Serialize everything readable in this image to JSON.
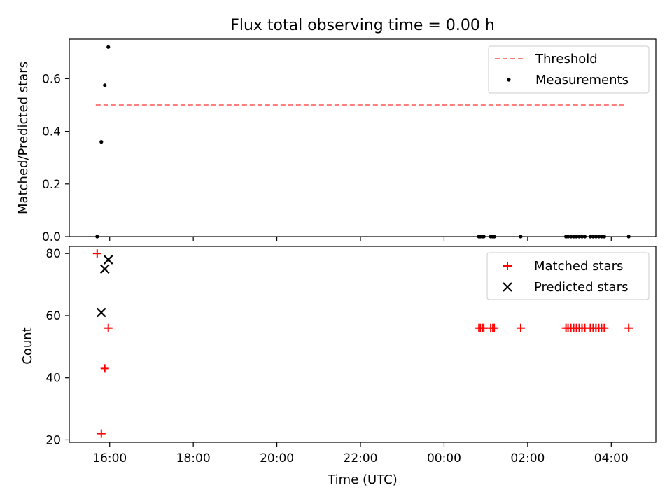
{
  "figure": {
    "title": "Flux total observing time = 0.00 h"
  },
  "chart_data": [
    {
      "type": "scatter",
      "panel": "top",
      "title": "Flux total observing time = 0.00 h",
      "xlabel": "",
      "ylabel": "Matched/Predicted stars",
      "x_axis": "time",
      "x_ticks": [
        "16:00",
        "18:00",
        "20:00",
        "22:00",
        "00:00",
        "02:00",
        "04:00"
      ],
      "x_tick_labels_visible": false,
      "xlim": [
        "2024-01-01T15:02",
        "2024-01-02T05:04"
      ],
      "ylim": [
        0,
        0.75
      ],
      "y_ticks": [
        0.0,
        0.2,
        0.4,
        0.6
      ],
      "y_tick_labels": [
        "0.0",
        "0.2",
        "0.4",
        "0.6"
      ],
      "grid": false,
      "legend_position": "upper right",
      "series": [
        {
          "name": "Threshold",
          "kind": "dashed-line",
          "color": "#ff7f7f",
          "x": [
            "2024-01-01T15:40",
            "2024-01-02T04:22"
          ],
          "y": [
            0.5,
            0.5
          ]
        },
        {
          "name": "Measurements",
          "kind": "dot",
          "color": "#000000",
          "x": [
            "2024-01-01T15:42",
            "2024-01-01T15:48",
            "2024-01-01T15:53",
            "2024-01-01T15:58",
            "2024-01-02T00:50",
            "2024-01-02T00:52",
            "2024-01-02T00:55",
            "2024-01-02T00:57",
            "2024-01-02T01:07",
            "2024-01-02T01:10",
            "2024-01-02T01:12",
            "2024-01-02T01:50",
            "2024-01-02T02:55",
            "2024-01-02T02:58",
            "2024-01-02T03:02",
            "2024-01-02T03:06",
            "2024-01-02T03:10",
            "2024-01-02T03:14",
            "2024-01-02T03:18",
            "2024-01-02T03:22",
            "2024-01-02T03:30",
            "2024-01-02T03:34",
            "2024-01-02T03:38",
            "2024-01-02T03:42",
            "2024-01-02T03:46",
            "2024-01-02T03:50",
            "2024-01-02T04:25"
          ],
          "y": [
            0.0,
            0.36,
            0.575,
            0.72,
            0.0,
            0.0,
            0.0,
            0.0,
            0.0,
            0.0,
            0.0,
            0.0,
            0.0,
            0.0,
            0.0,
            0.0,
            0.0,
            0.0,
            0.0,
            0.0,
            0.0,
            0.0,
            0.0,
            0.0,
            0.0,
            0.0,
            0.0
          ]
        }
      ]
    },
    {
      "type": "scatter",
      "panel": "bottom",
      "xlabel": "Time (UTC)",
      "ylabel": "Count",
      "x_axis": "time",
      "x_ticks": [
        "16:00",
        "18:00",
        "20:00",
        "22:00",
        "00:00",
        "02:00",
        "04:00"
      ],
      "x_tick_labels": [
        "16:00",
        "18:00",
        "20:00",
        "22:00",
        "00:00",
        "02:00",
        "04:00"
      ],
      "xlim": [
        "2024-01-01T15:02",
        "2024-01-02T05:04"
      ],
      "ylim": [
        19.2,
        82.3
      ],
      "y_ticks": [
        20,
        40,
        60,
        80
      ],
      "y_tick_labels": [
        "20",
        "40",
        "60",
        "80"
      ],
      "grid": false,
      "legend_position": "upper right",
      "series": [
        {
          "name": "Matched stars",
          "kind": "plus",
          "color": "#ff0000",
          "x": [
            "2024-01-01T15:42",
            "2024-01-01T15:48",
            "2024-01-01T15:53",
            "2024-01-01T15:58",
            "2024-01-02T00:50",
            "2024-01-02T00:52",
            "2024-01-02T00:55",
            "2024-01-02T00:57",
            "2024-01-02T01:07",
            "2024-01-02T01:10",
            "2024-01-02T01:12",
            "2024-01-02T01:50",
            "2024-01-02T02:55",
            "2024-01-02T02:58",
            "2024-01-02T03:02",
            "2024-01-02T03:06",
            "2024-01-02T03:10",
            "2024-01-02T03:14",
            "2024-01-02T03:18",
            "2024-01-02T03:22",
            "2024-01-02T03:30",
            "2024-01-02T03:34",
            "2024-01-02T03:38",
            "2024-01-02T03:42",
            "2024-01-02T03:46",
            "2024-01-02T03:50",
            "2024-01-02T04:25"
          ],
          "y": [
            80,
            22,
            43,
            56,
            56,
            56,
            56,
            56,
            56,
            56,
            56,
            56,
            56,
            56,
            56,
            56,
            56,
            56,
            56,
            56,
            56,
            56,
            56,
            56,
            56,
            56,
            56
          ]
        },
        {
          "name": "Predicted stars",
          "kind": "x",
          "color": "#000000",
          "x": [
            "2024-01-01T15:48",
            "2024-01-01T15:53",
            "2024-01-01T15:58"
          ],
          "y": [
            61,
            75,
            78
          ]
        }
      ]
    }
  ]
}
